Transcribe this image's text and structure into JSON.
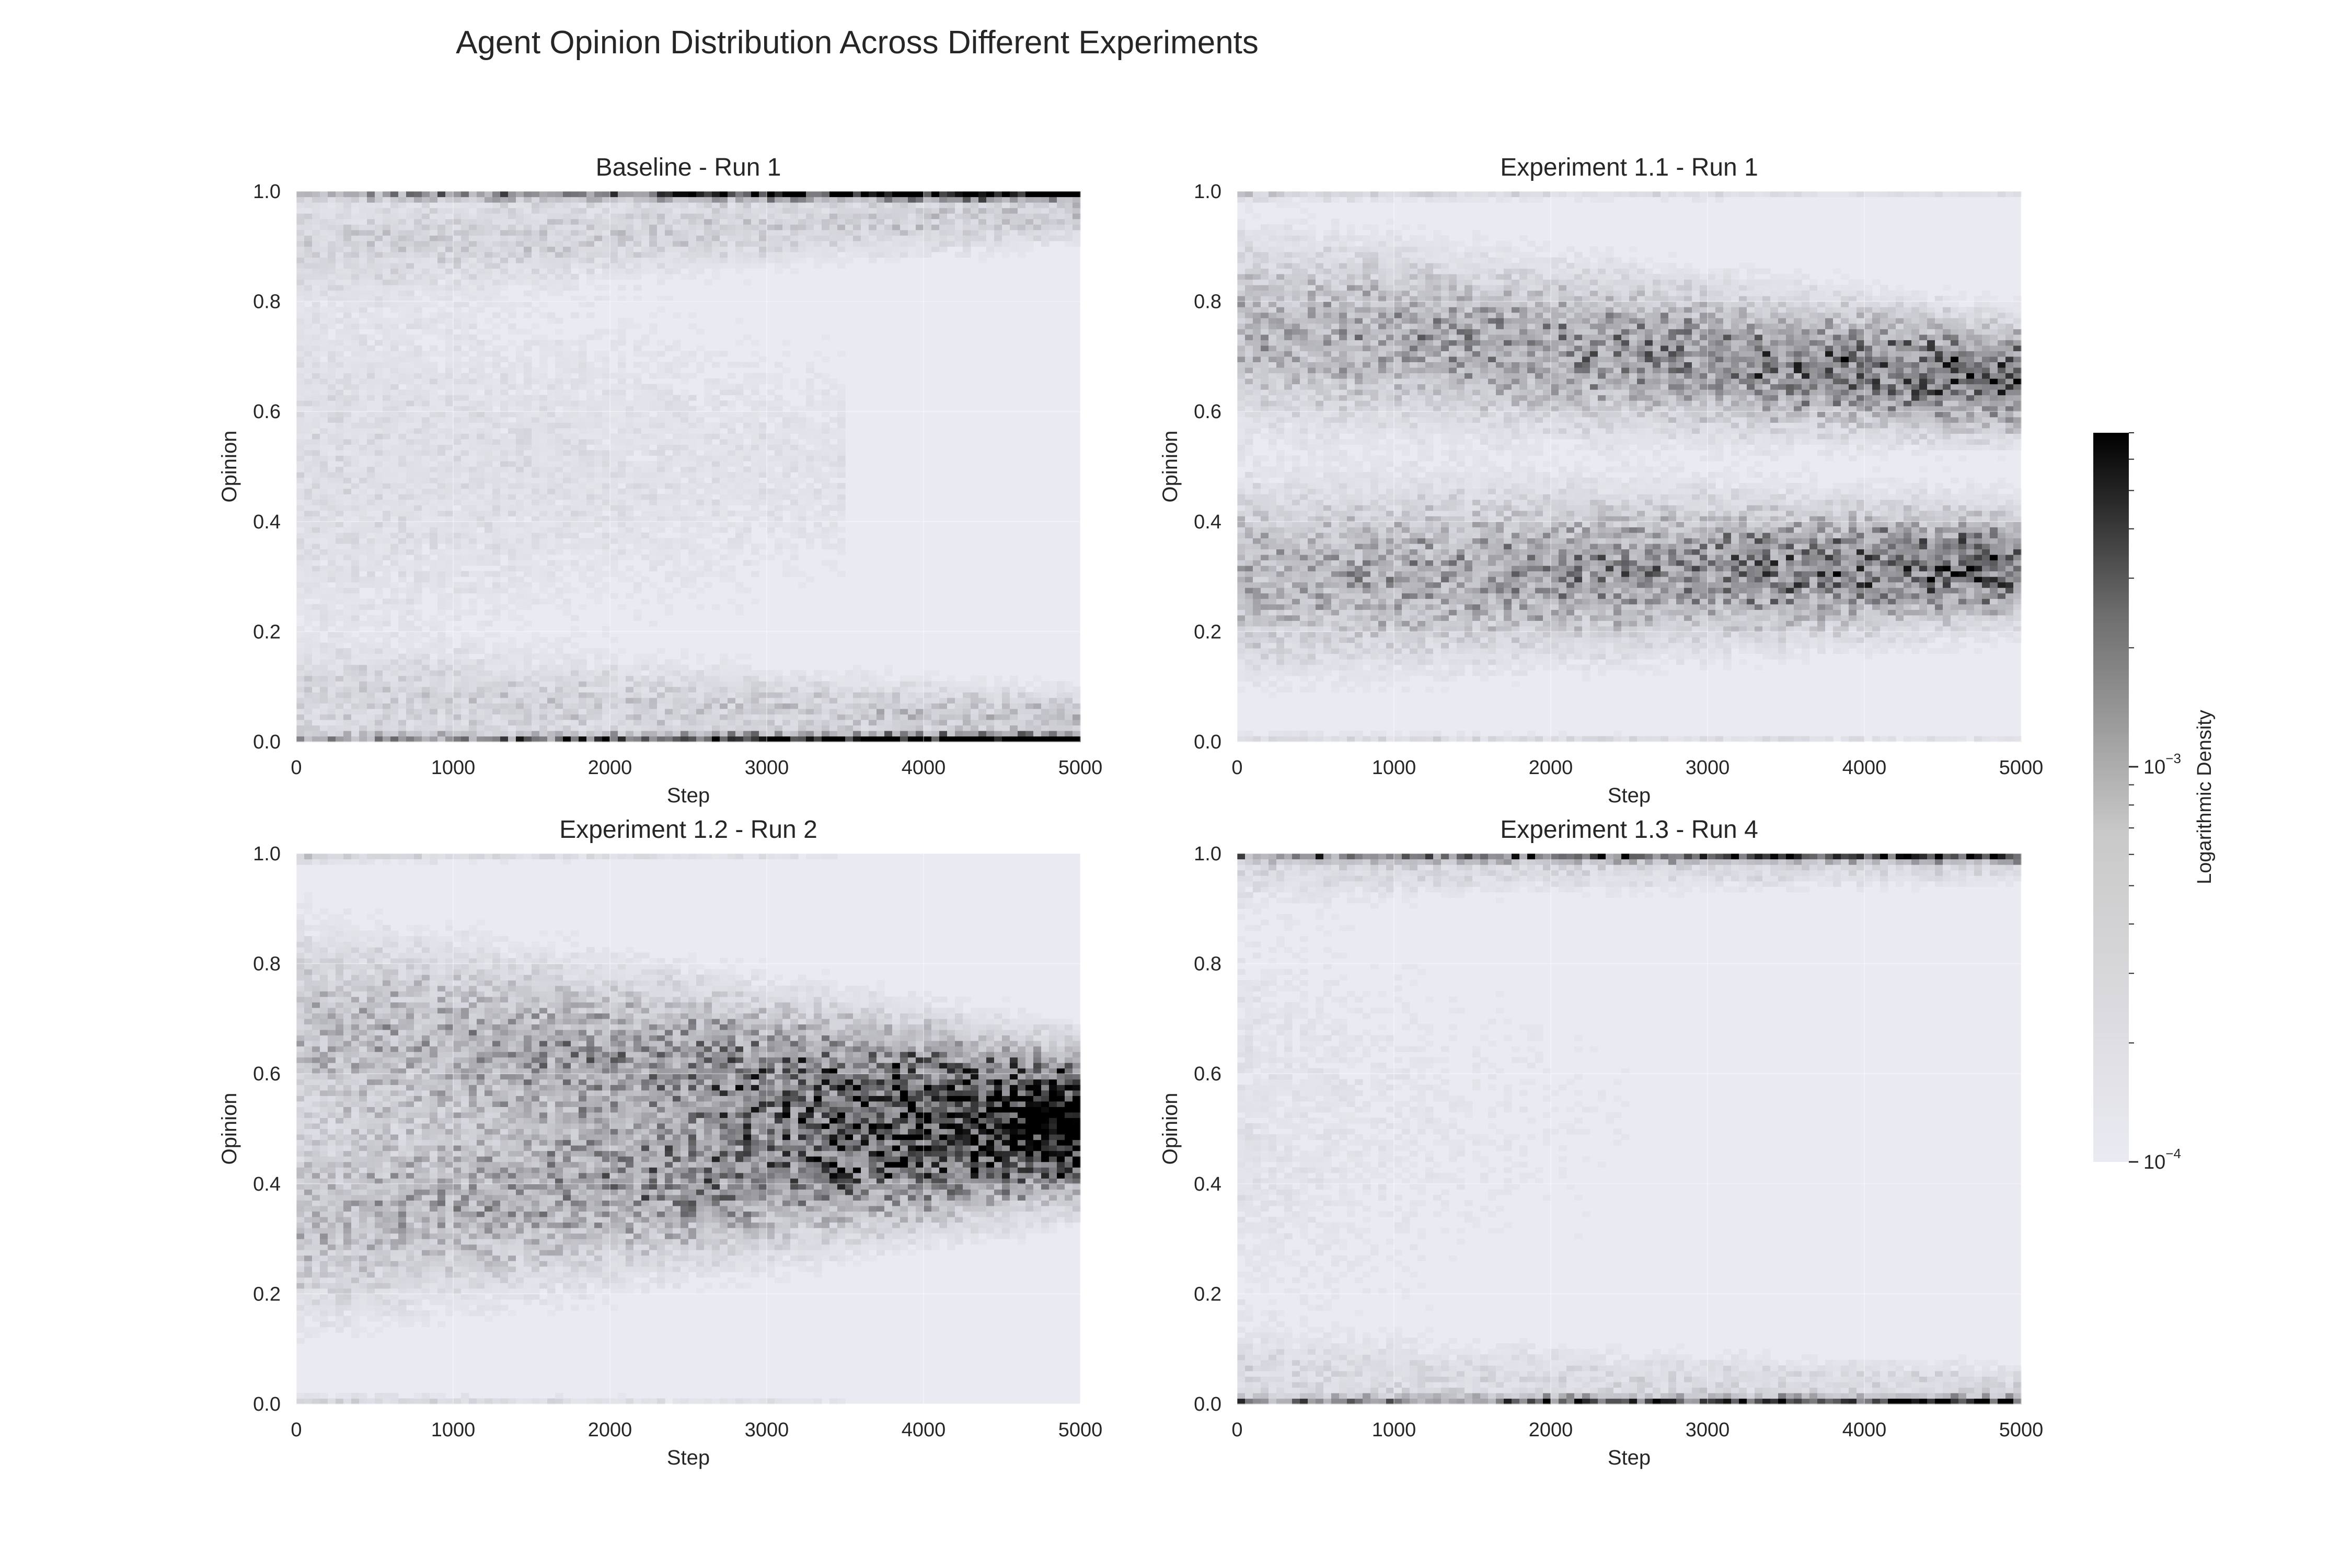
{
  "figure": {
    "title": "Agent Opinion Distribution Across Different Experiments"
  },
  "colorbar": {
    "label": "Logarithmic Density",
    "scale": "log",
    "range": [
      0.0001,
      0.007
    ],
    "major_ticks": [
      {
        "value": 0.0001,
        "base": "10",
        "exp": "−4"
      },
      {
        "value": 0.001,
        "base": "10",
        "exp": "−3"
      }
    ],
    "colormap": "light-gray-to-black"
  },
  "chart_data": [
    {
      "type": "heatmap",
      "title": "Baseline - Run 1",
      "xlabel": "Step",
      "ylabel": "Opinion",
      "xlim": [
        0,
        5000
      ],
      "ylim": [
        0,
        1
      ],
      "xticks": [
        0,
        1000,
        2000,
        3000,
        4000,
        5000
      ],
      "xtick_labels": [
        "0",
        "1000",
        "2000",
        "3000",
        "4000",
        "5000"
      ],
      "yticks": [
        0,
        0.2,
        0.4,
        0.6,
        0.8,
        1.0
      ],
      "ytick_labels": [
        "0.0",
        "0.2",
        "0.4",
        "0.6",
        "0.8",
        "1.0"
      ],
      "grid": true,
      "density_clusters": [
        {
          "step_start": 0,
          "step_end": 5000,
          "opinion_start": 1.0,
          "opinion_end": 1.0,
          "spread": 0.006,
          "intensity": 0.35,
          "growth": 2.2
        },
        {
          "step_start": 0,
          "step_end": 5000,
          "opinion_start": 0.0,
          "opinion_end": 0.0,
          "spread": 0.006,
          "intensity": 0.35,
          "growth": 2.2
        },
        {
          "step_start": 0,
          "step_end": 5000,
          "opinion_start": 0.9,
          "opinion_end": 0.96,
          "spread": 0.05,
          "intensity": 0.12,
          "growth": 0.4
        },
        {
          "step_start": 0,
          "step_end": 5000,
          "opinion_start": 0.08,
          "opinion_end": 0.04,
          "spread": 0.05,
          "intensity": 0.12,
          "growth": 0.6
        },
        {
          "step_start": 0,
          "step_end": 3500,
          "opinion_start": 0.5,
          "opinion_end": 0.5,
          "spread": 0.25,
          "intensity": 0.08,
          "growth": -0.5
        }
      ]
    },
    {
      "type": "heatmap",
      "title": "Experiment 1.1 - Run 1",
      "xlabel": "Step",
      "ylabel": "Opinion",
      "xlim": [
        0,
        5000
      ],
      "ylim": [
        0,
        1
      ],
      "xticks": [
        0,
        1000,
        2000,
        3000,
        4000,
        5000
      ],
      "xtick_labels": [
        "0",
        "1000",
        "2000",
        "3000",
        "4000",
        "5000"
      ],
      "yticks": [
        0,
        0.2,
        0.4,
        0.6,
        0.8,
        1.0
      ],
      "ytick_labels": [
        "0.0",
        "0.2",
        "0.4",
        "0.6",
        "0.8",
        "1.0"
      ],
      "grid": true,
      "density_clusters": [
        {
          "step_start": 0,
          "step_end": 5000,
          "opinion_start": 0.75,
          "opinion_end": 0.66,
          "spread": 0.09,
          "intensity": 0.3,
          "growth": 1.0
        },
        {
          "step_start": 0,
          "step_end": 5000,
          "opinion_start": 0.3,
          "opinion_end": 0.32,
          "spread": 0.09,
          "intensity": 0.3,
          "growth": 1.0
        },
        {
          "step_start": 0,
          "step_end": 5000,
          "opinion_start": 1.0,
          "opinion_end": 1.0,
          "spread": 0.006,
          "intensity": 0.15,
          "growth": -0.8
        },
        {
          "step_start": 0,
          "step_end": 5000,
          "opinion_start": 0.0,
          "opinion_end": 0.0,
          "spread": 0.006,
          "intensity": 0.12,
          "growth": -0.6
        }
      ]
    },
    {
      "type": "heatmap",
      "title": "Experiment 1.2 - Run 2",
      "xlabel": "Step",
      "ylabel": "Opinion",
      "xlim": [
        0,
        5000
      ],
      "ylim": [
        0,
        1
      ],
      "xticks": [
        0,
        1000,
        2000,
        3000,
        4000,
        5000
      ],
      "xtick_labels": [
        "0",
        "1000",
        "2000",
        "3000",
        "4000",
        "5000"
      ],
      "yticks": [
        0,
        0.2,
        0.4,
        0.6,
        0.8,
        1.0
      ],
      "ytick_labels": [
        "0.0",
        "0.2",
        "0.4",
        "0.6",
        "0.8",
        "1.0"
      ],
      "grid": true,
      "density_clusters": [
        {
          "step_start": 0,
          "step_end": 5000,
          "opinion_start": 0.68,
          "opinion_end": 0.54,
          "spread": 0.1,
          "intensity": 0.25,
          "growth": 1.4
        },
        {
          "step_start": 0,
          "step_end": 5000,
          "opinion_start": 0.34,
          "opinion_end": 0.48,
          "spread": 0.1,
          "intensity": 0.25,
          "growth": 1.4
        },
        {
          "step_start": 0,
          "step_end": 3500,
          "opinion_start": 1.0,
          "opinion_end": 1.0,
          "spread": 0.006,
          "intensity": 0.15,
          "growth": -1.0
        },
        {
          "step_start": 0,
          "step_end": 3500,
          "opinion_start": 0.0,
          "opinion_end": 0.0,
          "spread": 0.006,
          "intensity": 0.15,
          "growth": -1.0
        }
      ]
    },
    {
      "type": "heatmap",
      "title": "Experiment 1.3 - Run 4",
      "xlabel": "Step",
      "ylabel": "Opinion",
      "xlim": [
        0,
        5000
      ],
      "ylim": [
        0,
        1
      ],
      "xticks": [
        0,
        1000,
        2000,
        3000,
        4000,
        5000
      ],
      "xtick_labels": [
        "0",
        "1000",
        "2000",
        "3000",
        "4000",
        "5000"
      ],
      "yticks": [
        0,
        0.2,
        0.4,
        0.6,
        0.8,
        1.0
      ],
      "ytick_labels": [
        "0.0",
        "0.2",
        "0.4",
        "0.6",
        "0.8",
        "1.0"
      ],
      "grid": true,
      "density_clusters": [
        {
          "step_start": 0,
          "step_end": 5000,
          "opinion_start": 1.0,
          "opinion_end": 1.0,
          "spread": 0.006,
          "intensity": 0.5,
          "growth": 1.2
        },
        {
          "step_start": 0,
          "step_end": 5000,
          "opinion_start": 0.0,
          "opinion_end": 0.0,
          "spread": 0.006,
          "intensity": 0.5,
          "growth": 1.2
        },
        {
          "step_start": 0,
          "step_end": 5000,
          "opinion_start": 0.97,
          "opinion_end": 0.98,
          "spread": 0.03,
          "intensity": 0.08,
          "growth": 0.4
        },
        {
          "step_start": 0,
          "step_end": 5000,
          "opinion_start": 0.05,
          "opinion_end": 0.03,
          "spread": 0.04,
          "intensity": 0.08,
          "growth": 0.4
        },
        {
          "step_start": 0,
          "step_end": 2500,
          "opinion_start": 0.5,
          "opinion_end": 0.5,
          "spread": 0.3,
          "intensity": 0.05,
          "growth": -1.0
        }
      ]
    }
  ]
}
